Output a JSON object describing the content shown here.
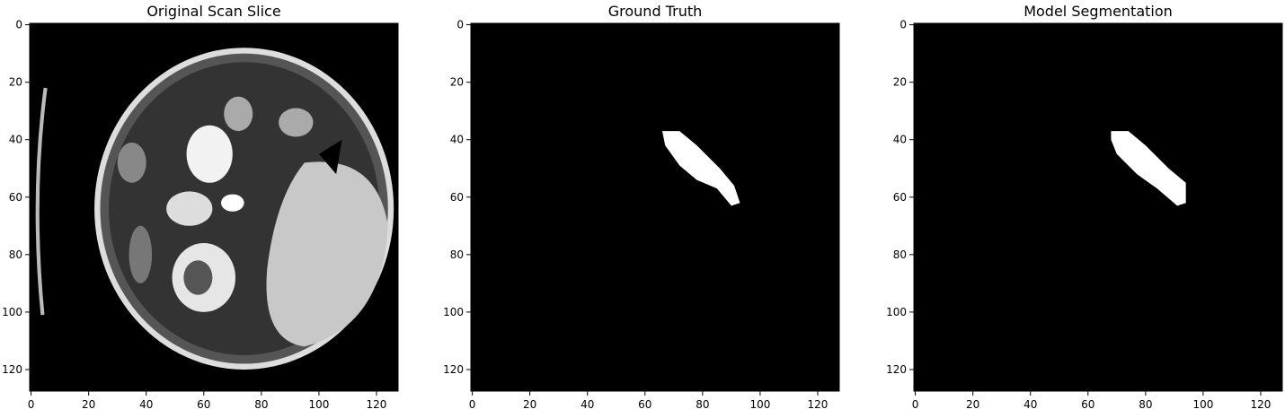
{
  "chart_data": [
    {
      "type": "image",
      "title": "Original Scan Slice",
      "xlim": [
        -0.5,
        127.5
      ],
      "ylim": [
        127.5,
        -0.5
      ],
      "xticks": [
        0,
        20,
        40,
        60,
        80,
        100,
        120
      ],
      "yticks": [
        0,
        20,
        40,
        60,
        80,
        100,
        120
      ]
    },
    {
      "type": "image",
      "title": "Ground Truth",
      "xlim": [
        -0.5,
        127.5
      ],
      "ylim": [
        127.5,
        -0.5
      ],
      "xticks": [
        0,
        20,
        40,
        60,
        80,
        100,
        120
      ],
      "yticks": [
        0,
        20,
        40,
        60,
        80,
        100,
        120
      ]
    },
    {
      "type": "image",
      "title": "Model Segmentation",
      "xlim": [
        -0.5,
        127.5
      ],
      "ylim": [
        127.5,
        -0.5
      ],
      "xticks": [
        0,
        20,
        40,
        60,
        80,
        100,
        120
      ],
      "yticks": [
        0,
        20,
        40,
        60,
        80,
        100,
        120
      ]
    }
  ]
}
